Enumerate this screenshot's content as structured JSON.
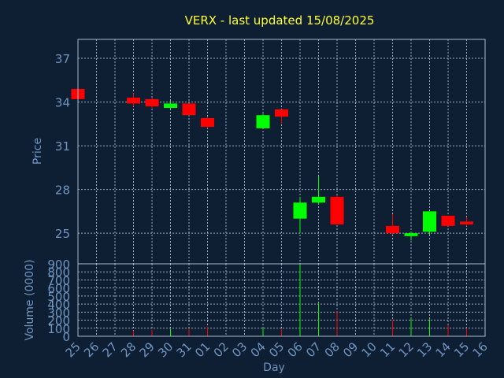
{
  "chart_data": {
    "type": "candlestick",
    "title": "VERX - last updated 15/08/2025",
    "xlabel": "Day",
    "ylabel": "Price",
    "volume_label": "Volume (0000)",
    "grid": true,
    "price_ylim": [
      22.9,
      38.3
    ],
    "price_ticks": [
      25,
      28,
      31,
      34,
      37
    ],
    "volume_ylim": [
      0,
      900
    ],
    "volume_ticks": [
      0,
      100,
      200,
      300,
      400,
      500,
      600,
      700,
      800,
      900
    ],
    "x_tick_labels": [
      "25",
      "26",
      "27",
      "28",
      "29",
      "30",
      "31",
      "01",
      "02",
      "03",
      "04",
      "05",
      "06",
      "07",
      "08",
      "09",
      "10",
      "11",
      "12",
      "13",
      "14",
      "15",
      "16"
    ],
    "colors": {
      "up": "#00ff00",
      "down": "#ff0000",
      "background": "#0f1f33",
      "title": "#ffff33",
      "axis_text": "#6f96c2"
    },
    "candles": [
      {
        "day": "25",
        "open": 34.9,
        "high": 34.9,
        "low": 34.2,
        "close": 34.2,
        "volume": 20
      },
      {
        "day": "28",
        "open": 34.3,
        "high": 34.6,
        "low": 33.7,
        "close": 33.9,
        "volume": 70
      },
      {
        "day": "29",
        "open": 34.2,
        "high": 34.3,
        "low": 33.6,
        "close": 33.7,
        "volume": 80
      },
      {
        "day": "30",
        "open": 33.6,
        "high": 34.1,
        "low": 33.5,
        "close": 33.9,
        "volume": 90
      },
      {
        "day": "31",
        "open": 33.9,
        "high": 33.9,
        "low": 33.1,
        "close": 33.1,
        "volume": 100
      },
      {
        "day": "01",
        "open": 32.9,
        "high": 33.0,
        "low": 32.2,
        "close": 32.3,
        "volume": 120
      },
      {
        "day": "04",
        "open": 32.2,
        "high": 33.2,
        "low": 32.2,
        "close": 33.1,
        "volume": 110
      },
      {
        "day": "05",
        "open": 33.5,
        "high": 33.5,
        "low": 32.5,
        "close": 33.0,
        "volume": 90
      },
      {
        "day": "06",
        "open": 26.0,
        "high": 27.5,
        "low": 25.0,
        "close": 27.1,
        "volume": 900
      },
      {
        "day": "07",
        "open": 27.1,
        "high": 28.9,
        "low": 27.0,
        "close": 27.5,
        "volume": 410
      },
      {
        "day": "08",
        "open": 27.5,
        "high": 27.6,
        "low": 25.6,
        "close": 25.6,
        "volume": 310
      },
      {
        "day": "11",
        "open": 25.5,
        "high": 26.3,
        "low": 24.9,
        "close": 25.0,
        "volume": 200
      },
      {
        "day": "12",
        "open": 24.8,
        "high": 25.1,
        "low": 24.5,
        "close": 25.0,
        "volume": 230
      },
      {
        "day": "13",
        "open": 25.1,
        "high": 26.5,
        "low": 24.9,
        "close": 26.5,
        "volume": 210
      },
      {
        "day": "14",
        "open": 26.2,
        "high": 26.2,
        "low": 25.5,
        "close": 25.5,
        "volume": 140
      },
      {
        "day": "15",
        "open": 25.8,
        "high": 26.1,
        "low": 25.5,
        "close": 25.6,
        "volume": 100
      }
    ]
  }
}
